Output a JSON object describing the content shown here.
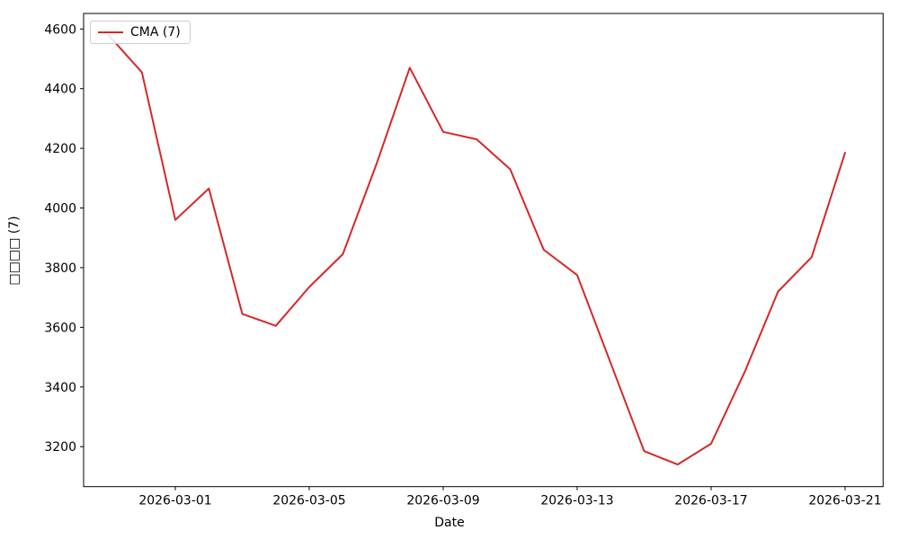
{
  "figure": {
    "background": "#ffffff"
  },
  "legend": {
    "label": "CMA (7)",
    "position": "upper left"
  },
  "axes": {
    "xlabel": "Date",
    "ylabel": "□□□□ (7)"
  },
  "chart_data": {
    "type": "line",
    "title": "",
    "xlabel": "Date",
    "ylabel": "□□□□ (7)",
    "x": [
      "2026-02-27",
      "2026-02-28",
      "2026-03-01",
      "2026-03-02",
      "2026-03-03",
      "2026-03-04",
      "2026-03-05",
      "2026-03-06",
      "2026-03-07",
      "2026-03-08",
      "2026-03-09",
      "2026-03-10",
      "2026-03-11",
      "2026-03-12",
      "2026-03-13",
      "2026-03-14",
      "2026-03-15",
      "2026-03-16",
      "2026-03-17",
      "2026-03-18",
      "2026-03-19",
      "2026-03-20",
      "2026-03-21"
    ],
    "series": [
      {
        "name": "CMA (7)",
        "color": "#d62728",
        "values": [
          4580,
          4455,
          3960,
          4065,
          3645,
          3605,
          3735,
          3845,
          4145,
          4470,
          4255,
          4230,
          4130,
          3860,
          3775,
          3480,
          3185,
          3140,
          3210,
          3450,
          3720,
          3835,
          4185
        ]
      }
    ],
    "x_tick_labels": [
      "2026-03-01",
      "2026-03-05",
      "2026-03-09",
      "2026-03-13",
      "2026-03-17",
      "2026-03-21"
    ],
    "y_ticks": [
      3200,
      3400,
      3600,
      3800,
      4000,
      4200,
      4400,
      4600
    ],
    "ylim": [
      3066,
      4652
    ],
    "grid": false,
    "legend_position": "upper left",
    "spine_color": "#000000"
  }
}
